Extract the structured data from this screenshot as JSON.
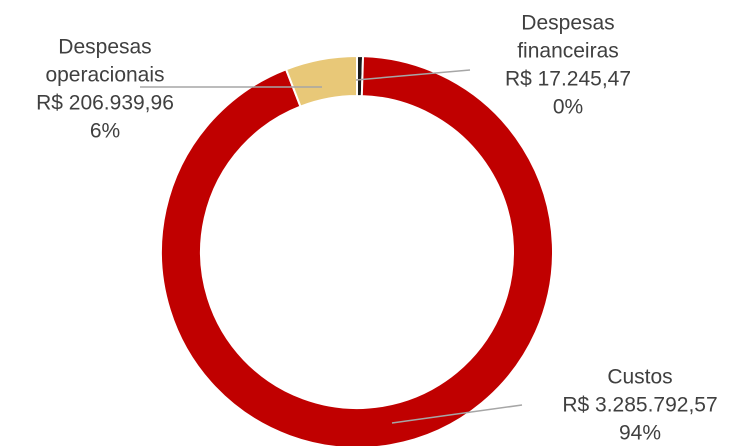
{
  "chart_data": {
    "type": "donut",
    "categories": [
      "Despesas financeiras",
      "Custos",
      "Despesas operacionais"
    ],
    "category_lines": [
      [
        "Despesas",
        "financeiras"
      ],
      [
        "Custos"
      ],
      [
        "Despesas",
        "operacionais"
      ]
    ],
    "values": [
      17245.47,
      3285792.57,
      206939.96
    ],
    "value_labels": [
      "R$ 17.245,47",
      "R$ 3.285.792,57",
      "R$ 206.939,96"
    ],
    "percent_labels": [
      "0%",
      "94%",
      "6%"
    ],
    "colors": [
      "#1a1a1a",
      "#c00000",
      "#e8c878"
    ]
  }
}
